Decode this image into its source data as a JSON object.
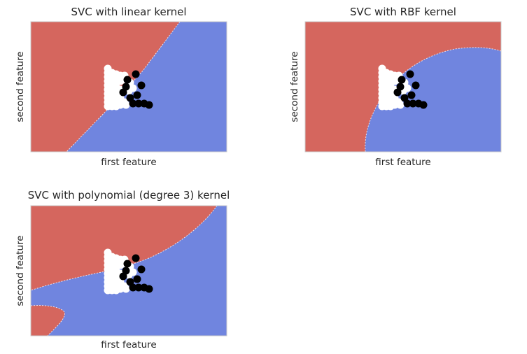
{
  "chart_data": [
    {
      "type": "scatter",
      "title": "SVC with linear kernel",
      "xlabel": "first feature",
      "ylabel": "second feature",
      "background": "decision regions",
      "ticks": "none",
      "colors": {
        "class_a_region": "#d5665e",
        "class_b_region": "#7085df"
      }
    },
    {
      "type": "scatter",
      "title": "SVC with RBF kernel",
      "xlabel": "first feature",
      "ylabel": "second feature",
      "background": "decision regions",
      "ticks": "none",
      "colors": {
        "class_a_region": "#d5665e",
        "class_b_region": "#7085df"
      }
    },
    {
      "type": "scatter",
      "title": "SVC with polynomial (degree 3) kernel",
      "xlabel": "first feature",
      "ylabel": "second feature",
      "background": "decision regions",
      "ticks": "none",
      "colors": {
        "class_a_region": "#d5665e",
        "class_b_region": "#7085df"
      }
    }
  ],
  "points": {
    "white_class_color": "#ffffff",
    "black_class_color": "#000000",
    "white": [
      [
        154,
        98
      ],
      [
        154,
        104
      ],
      [
        154,
        110
      ],
      [
        154,
        116
      ],
      [
        154,
        122
      ],
      [
        154,
        128
      ],
      [
        154,
        134
      ],
      [
        154,
        140
      ],
      [
        154,
        146
      ],
      [
        154,
        152
      ],
      [
        160,
        104
      ],
      [
        160,
        110
      ],
      [
        160,
        116
      ],
      [
        160,
        122
      ],
      [
        160,
        128
      ],
      [
        160,
        134
      ],
      [
        160,
        140
      ],
      [
        160,
        146
      ],
      [
        160,
        152
      ],
      [
        166,
        106
      ],
      [
        166,
        112
      ],
      [
        166,
        118
      ],
      [
        166,
        124
      ],
      [
        166,
        130
      ],
      [
        166,
        136
      ],
      [
        166,
        142
      ],
      [
        166,
        148
      ],
      [
        166,
        152
      ],
      [
        172,
        108
      ],
      [
        172,
        116
      ],
      [
        172,
        128
      ],
      [
        172,
        140
      ],
      [
        172,
        150
      ],
      [
        178,
        108
      ],
      [
        178,
        114
      ],
      [
        178,
        146
      ],
      [
        180,
        150
      ],
      [
        184,
        130
      ],
      [
        186,
        118
      ],
      [
        190,
        126
      ]
    ],
    "black": [
      [
        194,
        106
      ],
      [
        202,
        122
      ],
      [
        196,
        136
      ],
      [
        186,
        140
      ],
      [
        190,
        148
      ],
      [
        198,
        148
      ],
      [
        206,
        148
      ],
      [
        213,
        150
      ],
      [
        180,
        124
      ],
      [
        176,
        132
      ],
      [
        182,
        114
      ]
    ]
  }
}
